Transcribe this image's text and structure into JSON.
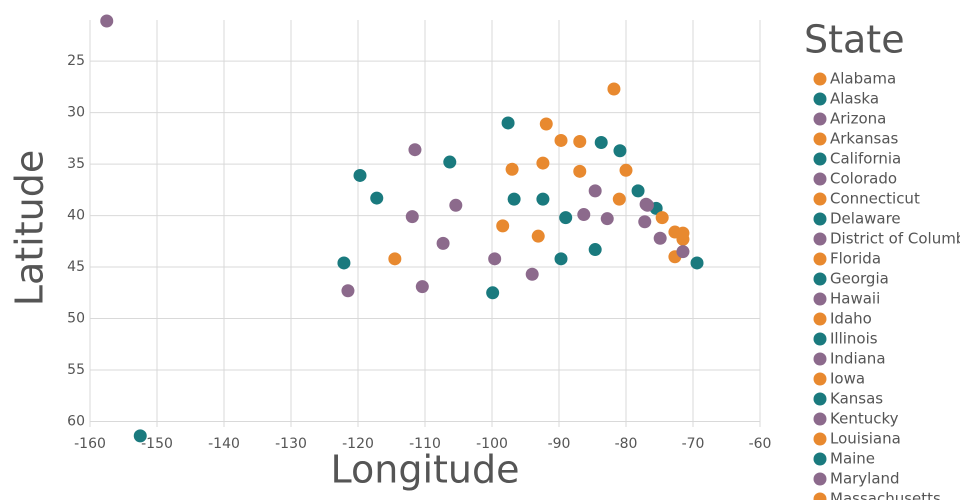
{
  "chart_data": {
    "type": "scatter",
    "x_label": "Longitude",
    "y_label": "Latitude",
    "legend_title": "State",
    "xlim": [
      -160,
      -60
    ],
    "ylim": [
      21,
      61.8
    ],
    "y_reversed": true,
    "grid": true,
    "xticks": [
      -160,
      -150,
      -140,
      -130,
      -120,
      -110,
      -100,
      -90,
      -80,
      -70,
      -60
    ],
    "yticks": [
      25,
      30,
      35,
      40,
      45,
      50,
      55,
      60
    ],
    "series": [
      {
        "name": "Alabama",
        "color": "#e8892f",
        "x": [
          -86.9
        ],
        "values": [
          32.8
        ]
      },
      {
        "name": "Alaska",
        "color": "#1a7a7e",
        "x": [
          -152.5
        ],
        "values": [
          61.4
        ]
      },
      {
        "name": "Arizona",
        "color": "#8c6a8c",
        "x": [
          -111.5
        ],
        "values": [
          33.6
        ]
      },
      {
        "name": "Arkansas",
        "color": "#e8892f",
        "x": [
          -92.4
        ],
        "values": [
          34.9
        ]
      },
      {
        "name": "California",
        "color": "#1a7a7e",
        "x": [
          -119.7
        ],
        "values": [
          36.1
        ]
      },
      {
        "name": "Colorado",
        "color": "#8c6a8c",
        "x": [
          -105.4
        ],
        "values": [
          39.0
        ]
      },
      {
        "name": "Connecticut",
        "color": "#e8892f",
        "x": [
          -72.7
        ],
        "values": [
          41.6
        ]
      },
      {
        "name": "Delaware",
        "color": "#1a7a7e",
        "x": [
          -75.5
        ],
        "values": [
          39.3
        ]
      },
      {
        "name": "District of Columbia",
        "color": "#8c6a8c",
        "x": [
          -77.0
        ],
        "values": [
          38.9
        ]
      },
      {
        "name": "Florida",
        "color": "#e8892f",
        "x": [
          -81.8
        ],
        "values": [
          27.7
        ]
      },
      {
        "name": "Georgia",
        "color": "#1a7a7e",
        "x": [
          -83.7
        ],
        "values": [
          32.9
        ]
      },
      {
        "name": "Hawaii",
        "color": "#8c6a8c",
        "x": [
          -157.5
        ],
        "values": [
          21.1
        ]
      },
      {
        "name": "Idaho",
        "color": "#e8892f",
        "x": [
          -114.5
        ],
        "values": [
          44.2
        ]
      },
      {
        "name": "Illinois",
        "color": "#1a7a7e",
        "x": [
          -89.0
        ],
        "values": [
          40.2
        ]
      },
      {
        "name": "Indiana",
        "color": "#8c6a8c",
        "x": [
          -86.3
        ],
        "values": [
          39.9
        ]
      },
      {
        "name": "Iowa",
        "color": "#e8892f",
        "x": [
          -93.1
        ],
        "values": [
          42.0
        ]
      },
      {
        "name": "Kansas",
        "color": "#1a7a7e",
        "x": [
          -96.7
        ],
        "values": [
          38.4
        ]
      },
      {
        "name": "Kentucky",
        "color": "#8c6a8c",
        "x": [
          -84.6
        ],
        "values": [
          37.6
        ]
      },
      {
        "name": "Louisiana",
        "color": "#e8892f",
        "x": [
          -91.9
        ],
        "values": [
          31.1
        ]
      },
      {
        "name": "Maine",
        "color": "#1a7a7e",
        "x": [
          -69.4
        ],
        "values": [
          44.6
        ]
      },
      {
        "name": "Maryland",
        "color": "#8c6a8c",
        "x": [
          -76.8
        ],
        "values": [
          39.0
        ]
      },
      {
        "name": "Massachusetts",
        "color": "#e8892f",
        "x": [
          -71.5
        ],
        "values": [
          42.3
        ]
      },
      {
        "color": "#e8892f",
        "x": [
          -89.7,
          -98.4,
          -74.6,
          -80.0,
          -97.0,
          -71.5,
          -86.9,
          -72.7,
          -81.0
        ],
        "values": [
          32.7,
          41.0,
          40.2,
          35.6,
          35.5,
          41.7,
          35.7,
          44.0,
          38.4
        ]
      },
      {
        "color": "#1a7a7e",
        "x": [
          -84.6,
          -92.4,
          -117.2,
          -106.3,
          -99.9,
          -122.1,
          -80.9,
          -97.6,
          -78.2,
          -89.7
        ],
        "values": [
          43.3,
          38.4,
          38.3,
          34.8,
          47.5,
          44.6,
          33.7,
          31.0,
          37.6,
          44.2
        ]
      },
      {
        "color": "#8c6a8c",
        "x": [
          -94.0,
          -110.4,
          -71.5,
          -74.9,
          -82.8,
          -77.2,
          -99.6,
          -111.9,
          -121.5,
          -107.3
        ],
        "values": [
          45.7,
          46.9,
          43.5,
          42.2,
          40.3,
          40.6,
          44.2,
          40.1,
          47.3,
          42.7
        ]
      }
    ]
  }
}
